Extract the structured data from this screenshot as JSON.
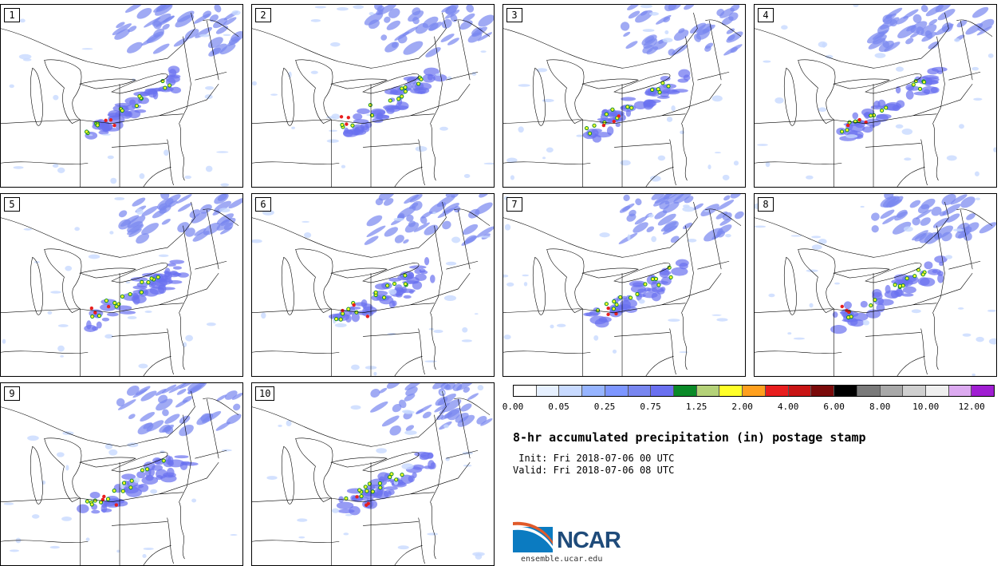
{
  "members": [
    {
      "label": "1"
    },
    {
      "label": "2"
    },
    {
      "label": "3"
    },
    {
      "label": "4"
    },
    {
      "label": "5"
    },
    {
      "label": "6"
    },
    {
      "label": "7"
    },
    {
      "label": "8"
    },
    {
      "label": "9"
    },
    {
      "label": "10"
    }
  ],
  "colorbar": {
    "colors": [
      "#ffffff",
      "#e6f0ff",
      "#c8daff",
      "#96b4ff",
      "#7d96ff",
      "#7886f0",
      "#6a70f0",
      "#0a8a28",
      "#b4d278",
      "#ffff28",
      "#ffa01e",
      "#e81e1e",
      "#c81414",
      "#7a0a0a",
      "#000000",
      "#7a7a7a",
      "#a8a8a8",
      "#cfcfcf",
      "#efefef",
      "#dcaaf0",
      "#a01ed2"
    ],
    "tick_labels": [
      "0.00",
      "0.05",
      "0.25",
      "0.75",
      "1.25",
      "2.00",
      "4.00",
      "6.00",
      "8.00",
      "10.00",
      "12.00"
    ]
  },
  "title": "8-hr accumulated precipitation (in) postage stamp",
  "init": " Init: Fri 2018-07-06 00 UTC",
  "valid": "Valid: Fri 2018-07-06 08 UTC",
  "logo": {
    "text": "NCAR",
    "url": "ensemble.ucar.edu",
    "accent": "#1f4b7a"
  }
}
